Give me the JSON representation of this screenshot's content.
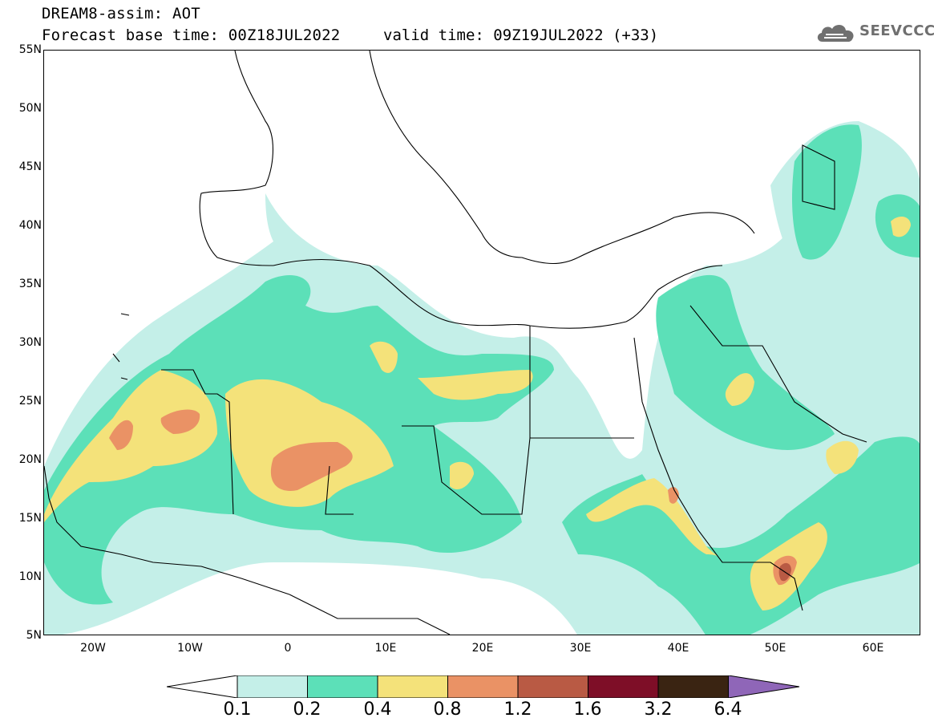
{
  "header": {
    "title": "DREAM8-assim: AOT",
    "base_time": "Forecast base time: 00Z18JUL2022",
    "valid_time": "valid time: 09Z19JUL2022 (+33)"
  },
  "logo": {
    "text": "SEEVCCC",
    "icon": "cloud-icon"
  },
  "map": {
    "lat_labels": [
      "55N",
      "50N",
      "45N",
      "40N",
      "35N",
      "30N",
      "25N",
      "20N",
      "15N",
      "10N",
      "5N"
    ],
    "lon_labels": [
      "20W",
      "10W",
      "0",
      "10E",
      "20E",
      "30E",
      "40E",
      "50E",
      "60E"
    ],
    "lat_range": [
      5,
      55
    ],
    "lon_range": [
      -25,
      65
    ]
  },
  "colorbar": {
    "labels": [
      "0.1",
      "0.2",
      "0.4",
      "0.8",
      "1.2",
      "1.6",
      "3.2",
      "6.4"
    ],
    "colors": [
      "#ffffff",
      "#c4efe8",
      "#5ce0b8",
      "#f4e27a",
      "#ea9265",
      "#b95a44",
      "#7e0e27",
      "#3a2412",
      "#8f66b8"
    ]
  }
}
